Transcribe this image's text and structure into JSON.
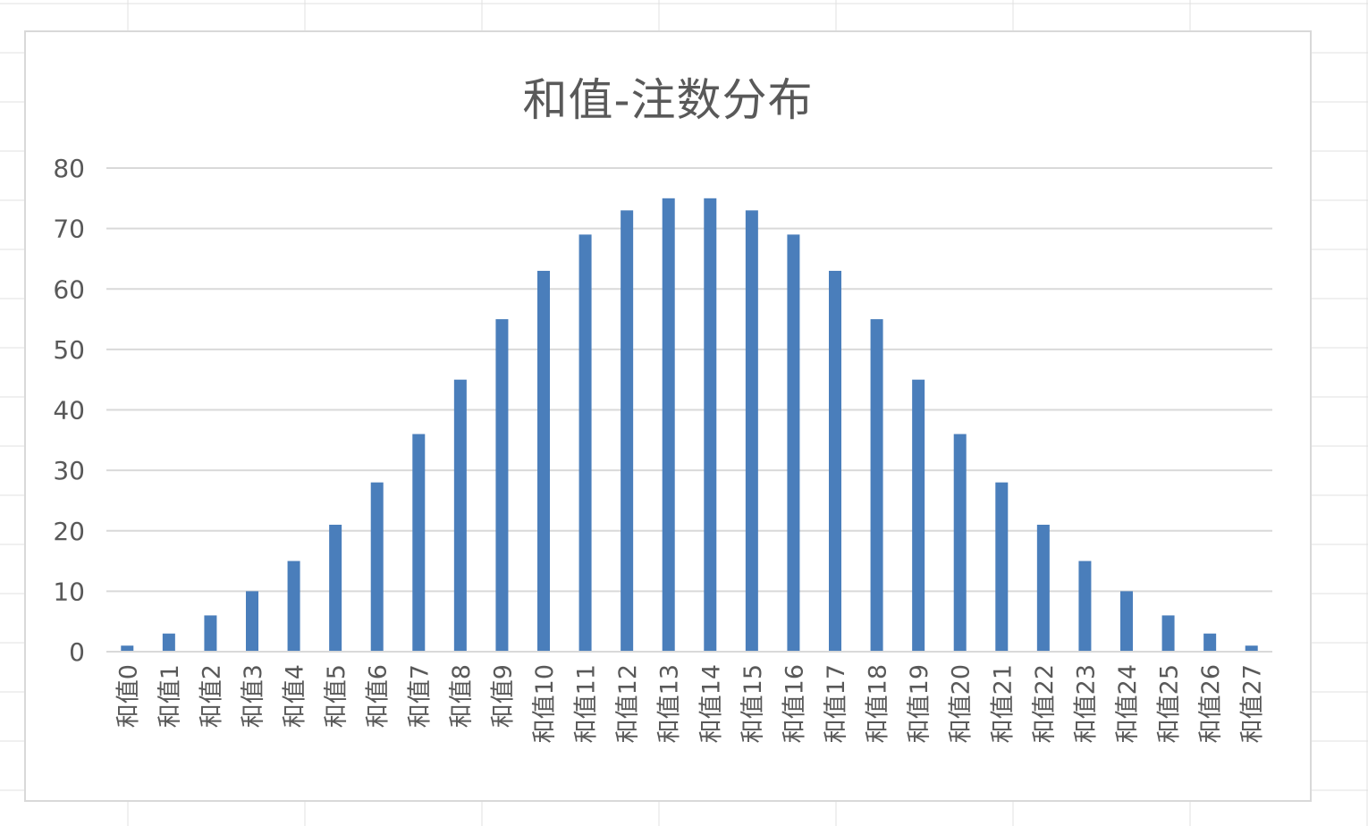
{
  "chart_data": {
    "type": "bar",
    "title": "和值-注数分布",
    "xlabel": "",
    "ylabel": "",
    "ylim": [
      0,
      80
    ],
    "yticks": [
      0,
      10,
      20,
      30,
      40,
      50,
      60,
      70,
      80
    ],
    "grid": true,
    "legend": "none",
    "categories": [
      "和值0",
      "和值1",
      "和值2",
      "和值3",
      "和值4",
      "和值5",
      "和值6",
      "和值7",
      "和值8",
      "和值9",
      "和值10",
      "和值11",
      "和值12",
      "和值13",
      "和值14",
      "和值15",
      "和值16",
      "和值17",
      "和值18",
      "和值19",
      "和值20",
      "和值21",
      "和值22",
      "和值23",
      "和值24",
      "和值25",
      "和值26",
      "和值27"
    ],
    "series": [
      {
        "values": [
          1,
          3,
          6,
          10,
          15,
          21,
          28,
          36,
          45,
          55,
          63,
          69,
          73,
          75,
          75,
          73,
          69,
          63,
          55,
          45,
          36,
          28,
          21,
          15,
          10,
          6,
          3,
          1
        ]
      }
    ],
    "colors": {
      "bar": "#4a7ebb",
      "grid": "#d9d9d9",
      "axis": "#d9d9d9",
      "tick_text": "#595959"
    }
  }
}
